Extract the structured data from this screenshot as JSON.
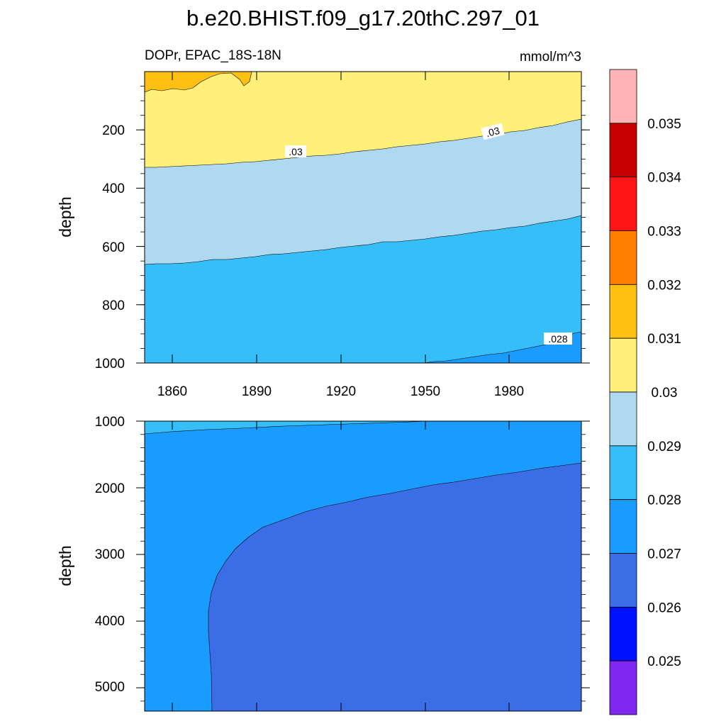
{
  "header": {
    "title": "b.e20.BHIST.f09_g17.20thC.297_01",
    "variable_region": "DOPr, EPAC_18S-18N",
    "units": "mmol/m^3"
  },
  "chart_data": [
    {
      "type": "contour",
      "panel": "upper",
      "ylabel": "depth",
      "xlim": [
        1850,
        2005
      ],
      "ylim": [
        0,
        1000
      ],
      "y_reversed": true,
      "x_ticks": [
        "1860",
        "1890",
        "1920",
        "1950",
        "1980"
      ],
      "y_ticks": [
        "200",
        "400",
        "600",
        "800",
        "1000"
      ],
      "contour_labels": [
        ".03",
        ".03",
        ".028"
      ],
      "regions": [
        {
          "level": "0.031-0.032",
          "color": "#ffc014",
          "description": "surface patch 1850-1885, depth 0-60"
        },
        {
          "level": "0.030-0.031",
          "color": "#fff07a",
          "boundary_depth_1850": 330,
          "boundary_depth_2005": 165
        },
        {
          "level": "0.029-0.030",
          "color": "#aed9f0",
          "boundary_depth_1850": 660,
          "boundary_depth_2005": 495
        },
        {
          "level": "0.028-0.029",
          "color": "#36bef8",
          "boundary_depth_1950": 1000,
          "boundary_depth_2005": 890
        },
        {
          "level": "0.027-0.028",
          "color": "#1a9cff"
        }
      ]
    },
    {
      "type": "contour",
      "panel": "lower",
      "ylabel": "depth",
      "xlim": [
        1850,
        2005
      ],
      "ylim": [
        1000,
        5350
      ],
      "y_reversed": true,
      "y_ticks": [
        "1000",
        "2000",
        "3000",
        "4000",
        "5000"
      ],
      "regions": [
        {
          "level": "0.028-0.029",
          "color": "#36bef8",
          "boundary_depth_1850": 1200,
          "boundary_depth_1950": 1000
        },
        {
          "level": "0.027-0.028",
          "color": "#1a9cff"
        },
        {
          "level": "0.026-0.027",
          "color": "#3b6ee6",
          "boundary_depth_2005": 1640,
          "boundary_x_deep": 1873
        }
      ]
    }
  ],
  "colorbar": {
    "labels": [
      "0.035",
      "0.034",
      "0.033",
      "0.032",
      "0.031",
      "0.03",
      "0.029",
      "0.028",
      "0.027",
      "0.026",
      "0.025"
    ],
    "colors": [
      "#ffb3b3",
      "#c80000",
      "#ff1414",
      "#ff7e00",
      "#ffc014",
      "#fff07a",
      "#aed9f0",
      "#36bef8",
      "#1a9cff",
      "#3b6ee6",
      "#0011ff",
      "#8027f0"
    ]
  }
}
